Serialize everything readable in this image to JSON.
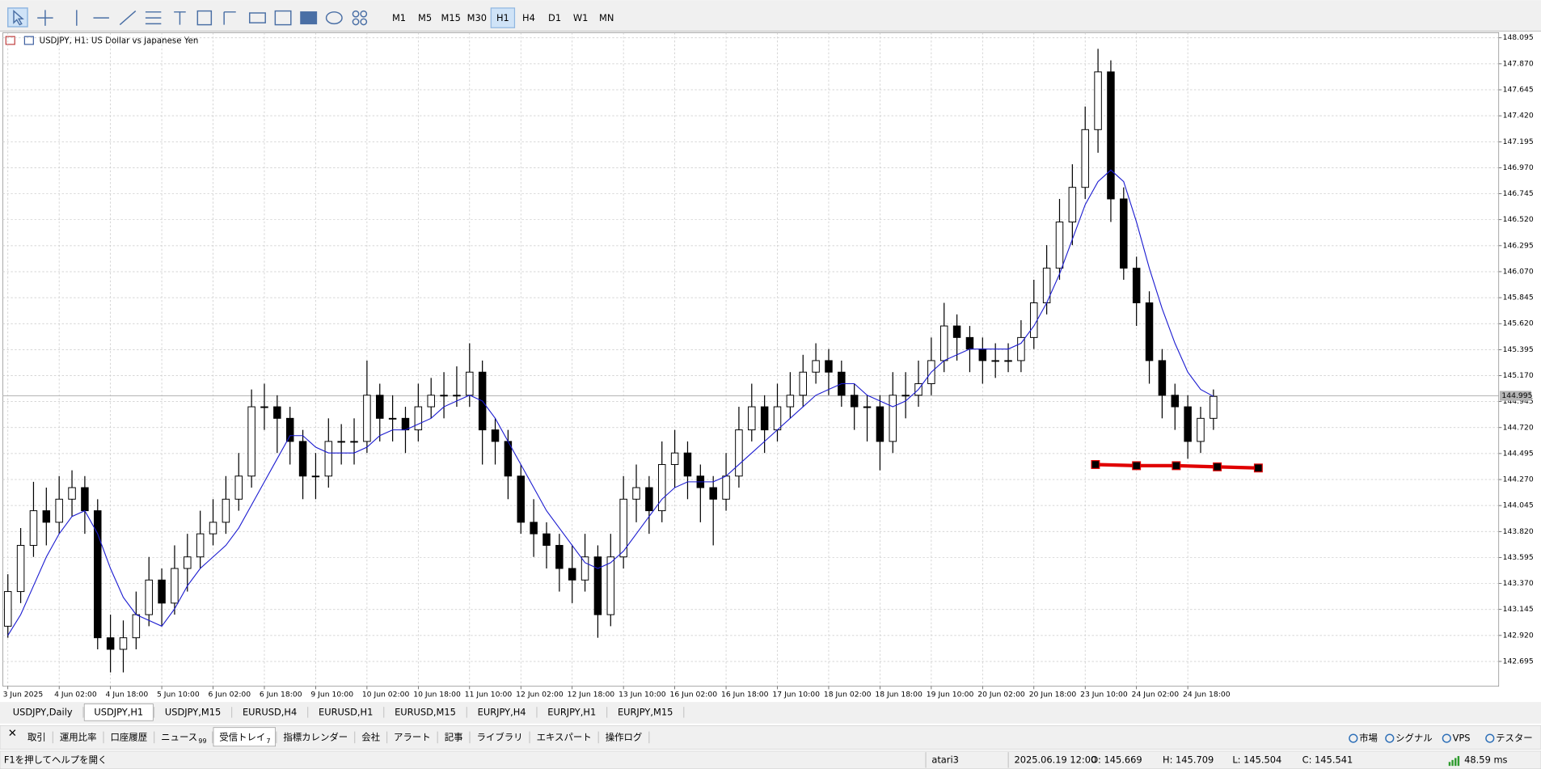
{
  "toolbar": {
    "timeframes": [
      "M1",
      "M5",
      "M15",
      "M30",
      "H1",
      "H4",
      "D1",
      "W1",
      "MN"
    ],
    "active_timeframe": 4
  },
  "chart_data": {
    "type": "candlestick",
    "title": "USDJPY, H1:  US Dollar vs Japanese Yen",
    "x_labels": [
      "3 Jun 2025",
      "4 Jun 02:00",
      "4 Jun 18:00",
      "5 Jun 10:00",
      "6 Jun 02:00",
      "6 Jun 18:00",
      "9 Jun 10:00",
      "10 Jun 02:00",
      "10 Jun 18:00",
      "11 Jun 10:00",
      "12 Jun 02:00",
      "12 Jun 18:00",
      "13 Jun 10:00",
      "16 Jun 02:00",
      "16 Jun 18:00",
      "17 Jun 10:00",
      "18 Jun 02:00",
      "18 Jun 18:00",
      "19 Jun 10:00",
      "20 Jun 02:00",
      "20 Jun 18:00",
      "23 Jun 10:00",
      "24 Jun 02:00",
      "24 Jun 18:00"
    ],
    "candles": [
      [
        143.0,
        143.45,
        142.9,
        143.3
      ],
      [
        143.3,
        143.85,
        143.2,
        143.7
      ],
      [
        143.7,
        144.25,
        143.6,
        144.0
      ],
      [
        144.0,
        144.2,
        143.7,
        143.9
      ],
      [
        143.9,
        144.3,
        143.8,
        144.1
      ],
      [
        144.1,
        144.35,
        143.95,
        144.2
      ],
      [
        144.2,
        144.3,
        143.8,
        144.0
      ],
      [
        144.0,
        144.1,
        142.8,
        142.9
      ],
      [
        142.9,
        143.1,
        142.6,
        142.8
      ],
      [
        142.8,
        143.05,
        142.6,
        142.9
      ],
      [
        142.9,
        143.3,
        142.8,
        143.1
      ],
      [
        143.1,
        143.6,
        143.0,
        143.4
      ],
      [
        143.4,
        143.5,
        143.0,
        143.2
      ],
      [
        143.2,
        143.7,
        143.1,
        143.5
      ],
      [
        143.5,
        143.8,
        143.3,
        143.6
      ],
      [
        143.6,
        144.0,
        143.5,
        143.8
      ],
      [
        143.8,
        144.1,
        143.7,
        143.9
      ],
      [
        143.9,
        144.3,
        143.8,
        144.1
      ],
      [
        144.1,
        144.5,
        144.0,
        144.3
      ],
      [
        144.3,
        145.05,
        144.2,
        144.9
      ],
      [
        144.9,
        145.1,
        144.7,
        144.9
      ],
      [
        144.9,
        145.0,
        144.5,
        144.8
      ],
      [
        144.8,
        144.9,
        144.4,
        144.6
      ],
      [
        144.6,
        144.7,
        144.1,
        144.3
      ],
      [
        144.3,
        144.5,
        144.1,
        144.3
      ],
      [
        144.3,
        144.8,
        144.2,
        144.6
      ],
      [
        144.6,
        144.75,
        144.4,
        144.6
      ],
      [
        144.6,
        144.8,
        144.4,
        144.6
      ],
      [
        144.6,
        145.3,
        144.5,
        145.0
      ],
      [
        145.0,
        145.1,
        144.6,
        144.8
      ],
      [
        144.8,
        145.0,
        144.6,
        144.8
      ],
      [
        144.8,
        144.9,
        144.5,
        144.7
      ],
      [
        144.7,
        145.1,
        144.6,
        144.9
      ],
      [
        144.9,
        145.15,
        144.8,
        145.0
      ],
      [
        145.0,
        145.2,
        144.8,
        145.0
      ],
      [
        145.0,
        145.25,
        144.9,
        145.0
      ],
      [
        145.0,
        145.45,
        144.9,
        145.2
      ],
      [
        145.2,
        145.3,
        144.4,
        144.7
      ],
      [
        144.7,
        144.8,
        144.4,
        144.6
      ],
      [
        144.6,
        144.7,
        144.1,
        144.3
      ],
      [
        144.3,
        144.4,
        143.8,
        143.9
      ],
      [
        143.9,
        144.1,
        143.6,
        143.8
      ],
      [
        143.8,
        143.9,
        143.5,
        143.7
      ],
      [
        143.7,
        143.8,
        143.3,
        143.5
      ],
      [
        143.5,
        143.7,
        143.2,
        143.4
      ],
      [
        143.4,
        143.8,
        143.3,
        143.6
      ],
      [
        143.6,
        143.7,
        142.9,
        143.1
      ],
      [
        143.1,
        143.8,
        143.0,
        143.6
      ],
      [
        143.6,
        144.3,
        143.5,
        144.1
      ],
      [
        144.1,
        144.4,
        143.9,
        144.2
      ],
      [
        144.2,
        144.3,
        143.8,
        144.0
      ],
      [
        144.0,
        144.6,
        143.9,
        144.4
      ],
      [
        144.4,
        144.7,
        144.2,
        144.5
      ],
      [
        144.5,
        144.6,
        144.1,
        144.3
      ],
      [
        144.3,
        144.4,
        143.9,
        144.2
      ],
      [
        144.2,
        144.3,
        143.7,
        144.1
      ],
      [
        144.1,
        144.5,
        144.0,
        144.3
      ],
      [
        144.3,
        144.9,
        144.2,
        144.7
      ],
      [
        144.7,
        145.1,
        144.6,
        144.9
      ],
      [
        144.9,
        145.0,
        144.5,
        144.7
      ],
      [
        144.7,
        145.1,
        144.6,
        144.9
      ],
      [
        144.9,
        145.2,
        144.8,
        145.0
      ],
      [
        145.0,
        145.35,
        144.9,
        145.2
      ],
      [
        145.2,
        145.45,
        145.1,
        145.3
      ],
      [
        145.3,
        145.4,
        145.0,
        145.2
      ],
      [
        145.2,
        145.3,
        144.9,
        145.0
      ],
      [
        145.0,
        145.1,
        144.7,
        144.9
      ],
      [
        144.9,
        145.0,
        144.6,
        144.9
      ],
      [
        144.9,
        145.0,
        144.35,
        144.6
      ],
      [
        144.6,
        145.2,
        144.5,
        145.0
      ],
      [
        145.0,
        145.2,
        144.8,
        145.0
      ],
      [
        145.0,
        145.3,
        144.9,
        145.1
      ],
      [
        145.1,
        145.5,
        145.0,
        145.3
      ],
      [
        145.3,
        145.8,
        145.2,
        145.6
      ],
      [
        145.6,
        145.7,
        145.3,
        145.5
      ],
      [
        145.5,
        145.6,
        145.2,
        145.4
      ],
      [
        145.4,
        145.5,
        145.1,
        145.3
      ],
      [
        145.3,
        145.45,
        145.15,
        145.3
      ],
      [
        145.3,
        145.45,
        145.2,
        145.3
      ],
      [
        145.3,
        145.65,
        145.2,
        145.5
      ],
      [
        145.5,
        146.0,
        145.4,
        145.8
      ],
      [
        145.8,
        146.3,
        145.7,
        146.1
      ],
      [
        146.1,
        146.7,
        146.0,
        146.5
      ],
      [
        146.5,
        147.0,
        146.3,
        146.8
      ],
      [
        146.8,
        147.5,
        146.7,
        147.3
      ],
      [
        147.3,
        148.0,
        147.1,
        147.8
      ],
      [
        147.8,
        147.9,
        146.5,
        146.7
      ],
      [
        146.7,
        146.8,
        146.0,
        146.1
      ],
      [
        146.1,
        146.2,
        145.6,
        145.8
      ],
      [
        145.8,
        145.9,
        145.1,
        145.3
      ],
      [
        145.3,
        145.4,
        144.8,
        145.0
      ],
      [
        145.0,
        145.1,
        144.7,
        144.9
      ],
      [
        144.9,
        145.0,
        144.45,
        144.6
      ],
      [
        144.6,
        144.9,
        144.5,
        144.8
      ],
      [
        144.8,
        145.05,
        144.7,
        144.99
      ]
    ],
    "ma": {
      "color": "#1a1ad0",
      "values": [
        142.92,
        143.1,
        143.35,
        143.6,
        143.8,
        143.95,
        144.0,
        143.8,
        143.5,
        143.25,
        143.1,
        143.05,
        143.0,
        143.15,
        143.35,
        143.5,
        143.6,
        143.7,
        143.85,
        144.05,
        144.25,
        144.45,
        144.65,
        144.65,
        144.55,
        144.5,
        144.5,
        144.5,
        144.55,
        144.65,
        144.7,
        144.7,
        144.75,
        144.8,
        144.9,
        144.95,
        145.0,
        144.95,
        144.8,
        144.6,
        144.4,
        144.2,
        144.0,
        143.85,
        143.7,
        143.55,
        143.5,
        143.55,
        143.65,
        143.8,
        143.95,
        144.1,
        144.2,
        144.25,
        144.25,
        144.25,
        144.3,
        144.4,
        144.5,
        144.6,
        144.7,
        144.8,
        144.9,
        145.0,
        145.05,
        145.1,
        145.1,
        145.0,
        144.95,
        144.9,
        144.95,
        145.05,
        145.2,
        145.3,
        145.35,
        145.4,
        145.4,
        145.4,
        145.4,
        145.45,
        145.6,
        145.8,
        146.05,
        146.35,
        146.65,
        146.85,
        146.95,
        146.85,
        146.5,
        146.1,
        145.75,
        145.45,
        145.2,
        145.05,
        144.99
      ]
    },
    "support_line": {
      "color": "#e00000",
      "x": [
        84.8,
        88,
        91.1,
        94.3,
        97.5
      ],
      "values": [
        144.4,
        144.39,
        144.39,
        144.38,
        144.37
      ]
    },
    "last_price": 144.995,
    "ylim": [
      142.48,
      148.14
    ],
    "yticks": [
      148.095,
      {
        "value": 147.87,
        "label": "147.870"
      },
      147.645,
      {
        "value": 147.42,
        "label": "147.420"
      },
      147.195,
      {
        "value": 146.97,
        "label": "146.970"
      },
      146.745,
      {
        "value": 146.52,
        "label": "146.520"
      },
      146.295,
      {
        "value": 146.07,
        "label": "146.070"
      },
      145.845,
      {
        "value": 145.62,
        "label": "145.620"
      },
      145.395,
      {
        "value": 145.17,
        "label": "145.170"
      },
      144.945,
      {
        "value": 144.72,
        "label": "144.720"
      },
      144.495,
      {
        "value": 144.27,
        "label": "144.270"
      },
      144.045,
      {
        "value": 143.82,
        "label": "143.820"
      },
      143.595,
      {
        "value": 143.37,
        "label": "143.370"
      },
      143.145,
      {
        "value": 142.92,
        "label": "142.920"
      },
      142.695
    ],
    "grid": true
  },
  "chart_tabs": {
    "tabs": [
      "USDJPY,Daily",
      "USDJPY,H1",
      "USDJPY,M15",
      "EURUSD,H4",
      "EURUSD,H1",
      "EURUSD,M15",
      "EURJPY,H4",
      "EURJPY,H1",
      "EURJPY,M15"
    ],
    "active": 1
  },
  "panel_tabs": {
    "tabs": [
      {
        "label": "取引"
      },
      {
        "label": "運用比率"
      },
      {
        "label": "口座履歴"
      },
      {
        "label": "ニュース",
        "badge": "99"
      },
      {
        "label": "受信トレイ",
        "badge": "7"
      },
      {
        "label": "指標カレンダー"
      },
      {
        "label": "会社"
      },
      {
        "label": "アラート"
      },
      {
        "label": "記事"
      },
      {
        "label": "ライブラリ"
      },
      {
        "label": "エキスパート"
      },
      {
        "label": "操作ログ"
      }
    ],
    "active": 4,
    "right": [
      "市場",
      "シグナル",
      "VPS",
      "テスター"
    ]
  },
  "status_bar": {
    "help": "F1を押してヘルプを開く",
    "profile": "atari3",
    "time": "2025.06.19 12:00",
    "open": "O: 145.669",
    "high": "H: 145.709",
    "low": "L: 145.504",
    "close": "C: 145.541",
    "ping": "48.59 ms"
  }
}
